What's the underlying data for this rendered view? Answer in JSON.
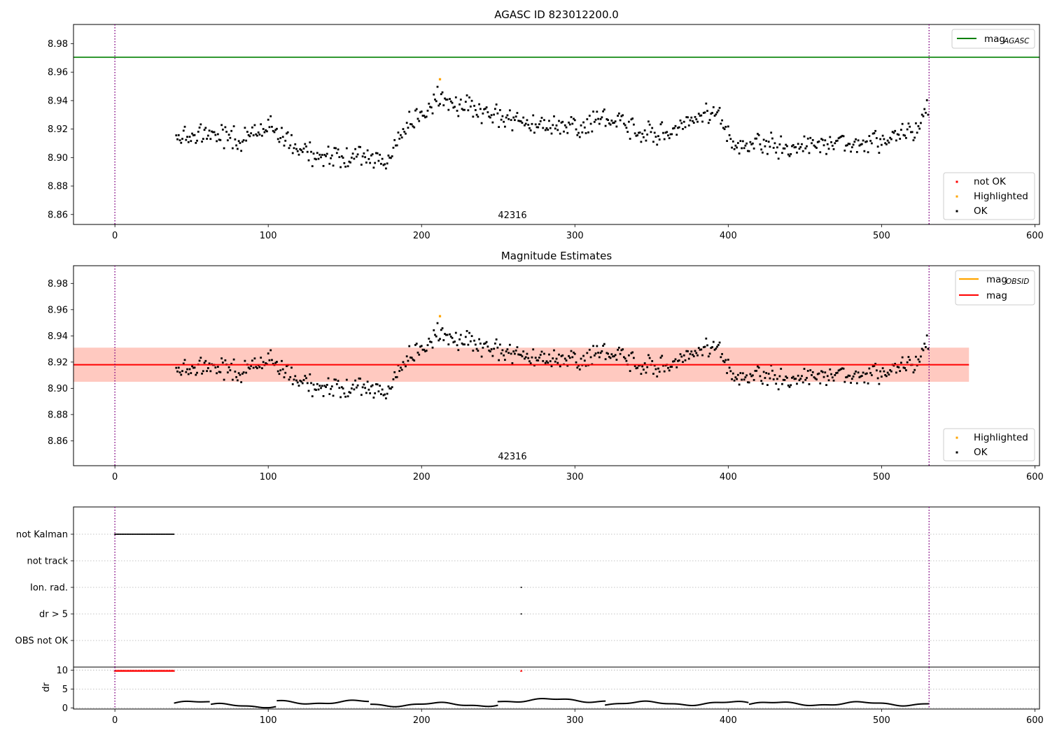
{
  "chart_data": [
    {
      "id": "top",
      "type": "scatter",
      "title": "AGASC ID 823012200.0",
      "annotation": "42316",
      "xlim": [
        -27,
        603
      ],
      "ylim": [
        8.853,
        8.9935
      ],
      "xticks": [
        0,
        100,
        200,
        300,
        400,
        500,
        600
      ],
      "yticks": [
        8.86,
        8.88,
        8.9,
        8.92,
        8.94,
        8.96,
        8.98
      ],
      "vlines": [
        0,
        531
      ],
      "hline": {
        "name": "mag_AGASC",
        "y": 8.9705,
        "color": "#008000"
      },
      "legend_line": {
        "label": "mag",
        "subscript": "AGASC",
        "color": "#008000"
      },
      "legend_points": [
        {
          "label": "not OK",
          "color": "#ff0000"
        },
        {
          "label": "Highlighted",
          "color": "#ffa500"
        },
        {
          "label": "OK",
          "color": "#000000"
        }
      ],
      "highlighted": [
        {
          "x": 212,
          "y": 8.955
        }
      ]
    },
    {
      "id": "middle",
      "type": "scatter",
      "title": "Magnitude Estimates",
      "annotation": "42316",
      "xlim": [
        -27,
        603
      ],
      "ylim": [
        8.841,
        8.9935
      ],
      "xticks": [
        0,
        100,
        200,
        300,
        400,
        500,
        600
      ],
      "yticks": [
        8.86,
        8.88,
        8.9,
        8.92,
        8.94,
        8.96,
        8.98
      ],
      "vlines": [
        0,
        531
      ],
      "mag_line": {
        "y": 8.918,
        "x_range": [
          -27,
          557
        ],
        "color": "#ff0000"
      },
      "band": {
        "y_low": 8.905,
        "y_high": 8.931,
        "x_range": [
          -27,
          557
        ]
      },
      "legend_lines": [
        {
          "label": "mag",
          "subscript": "OBSID",
          "color": "#ffa500"
        },
        {
          "label": "mag",
          "subscript": "",
          "color": "#ff0000"
        }
      ],
      "legend_points": [
        {
          "label": "Highlighted",
          "color": "#ffa500"
        },
        {
          "label": "OK",
          "color": "#000000"
        }
      ],
      "highlighted": [
        {
          "x": 212,
          "y": 8.955
        }
      ]
    },
    {
      "id": "flags",
      "type": "scatter",
      "xlim": [
        -27,
        603
      ],
      "categories": [
        "not Kalman",
        "not track",
        "Ion. rad.",
        "dr > 5",
        "OBS not OK"
      ],
      "vlines": [
        0,
        531
      ],
      "flag_points": [
        {
          "category": "not Kalman",
          "x_range": [
            0,
            39
          ]
        },
        {
          "category": "Ion. rad.",
          "x": 265
        },
        {
          "category": "dr > 5",
          "x": 265
        }
      ]
    },
    {
      "id": "dr",
      "type": "scatter",
      "ylabel": "dr",
      "xlim": [
        -27,
        603
      ],
      "ylim": [
        -0.3,
        10.8
      ],
      "yticks": [
        0,
        5,
        10
      ],
      "xticks": [
        0,
        100,
        200,
        300,
        400,
        500,
        600
      ],
      "xticklabels": [
        "0",
        "100",
        "200",
        "300",
        "400",
        "500",
        "600"
      ],
      "vlines": [
        0,
        531
      ],
      "capped_points": [
        {
          "x_range": [
            0,
            39
          ],
          "y": 9.8,
          "color": "#ff0000"
        },
        {
          "x": 265,
          "y": 9.8,
          "color": "#ff0000"
        }
      ],
      "dr_segments": [
        {
          "x_range": [
            39,
            62
          ],
          "level": 1.3
        },
        {
          "x_range": [
            63,
            105
          ],
          "level": 0.6
        },
        {
          "x_range": [
            106,
            166
          ],
          "level": 1.5
        },
        {
          "x_range": [
            167,
            250
          ],
          "level": 0.9
        },
        {
          "x_range": [
            250,
            320
          ],
          "level": 2.0
        },
        {
          "x_range": [
            320,
            413
          ],
          "level": 1.2
        },
        {
          "x_range": [
            414,
            531
          ],
          "level": 1.1
        }
      ]
    }
  ]
}
